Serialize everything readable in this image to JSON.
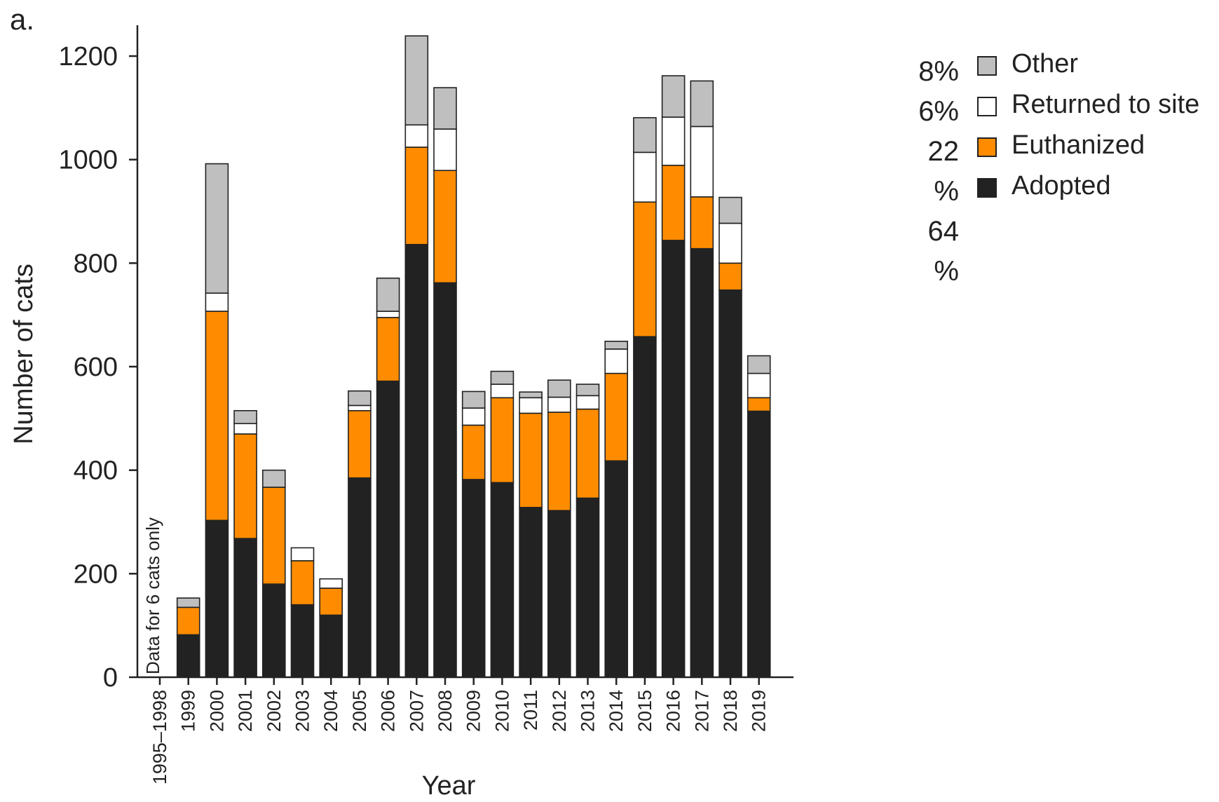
{
  "panel_label": "a.",
  "note": "Data for 6 cats only",
  "chart_data": {
    "type": "bar",
    "stacked": true,
    "title": "",
    "xlabel": "Year",
    "ylabel": "Number of cats",
    "ylim": [
      0,
      1260
    ],
    "yticks": [
      0,
      200,
      400,
      600,
      800,
      1000,
      1200
    ],
    "categories": [
      "1995–1998",
      "1999",
      "2000",
      "2001",
      "2002",
      "2003",
      "2004",
      "2005",
      "2006",
      "2007",
      "2008",
      "2009",
      "2010",
      "2011",
      "2012",
      "2013",
      "2014",
      "2015",
      "2016",
      "2017",
      "2018",
      "2019"
    ],
    "series": [
      {
        "name": "Adopted",
        "color": "#222222",
        "values": [
          0,
          82,
          303,
          268,
          180,
          140,
          120,
          385,
          572,
          836,
          762,
          382,
          376,
          328,
          322,
          346,
          418,
          658,
          844,
          828,
          748,
          514
        ]
      },
      {
        "name": "Euthanized",
        "color": "#ff8c00",
        "values": [
          0,
          53,
          404,
          202,
          187,
          85,
          52,
          130,
          123,
          188,
          217,
          105,
          164,
          182,
          190,
          172,
          169,
          260,
          145,
          100,
          52,
          26
        ]
      },
      {
        "name": "Returned to site",
        "color": "#ffffff",
        "values": [
          0,
          0,
          35,
          20,
          0,
          25,
          18,
          10,
          12,
          43,
          80,
          33,
          26,
          30,
          29,
          26,
          47,
          96,
          93,
          136,
          77,
          47
        ]
      },
      {
        "name": "Other",
        "color": "#bfbfbf",
        "values": [
          0,
          18,
          250,
          25,
          33,
          0,
          0,
          28,
          64,
          172,
          80,
          32,
          25,
          11,
          33,
          22,
          15,
          67,
          80,
          88,
          50,
          34
        ]
      }
    ],
    "legend": {
      "position": "right",
      "items": [
        {
          "label": "Other",
          "percent": "8%",
          "color": "#bfbfbf"
        },
        {
          "label": "Returned to site",
          "percent": "6%",
          "color": "#ffffff"
        },
        {
          "label": "Euthanized",
          "percent": "22\n%",
          "color": "#ff8c00"
        },
        {
          "label": "Adopted",
          "percent": "64\n%",
          "color": "#222222"
        }
      ]
    }
  }
}
